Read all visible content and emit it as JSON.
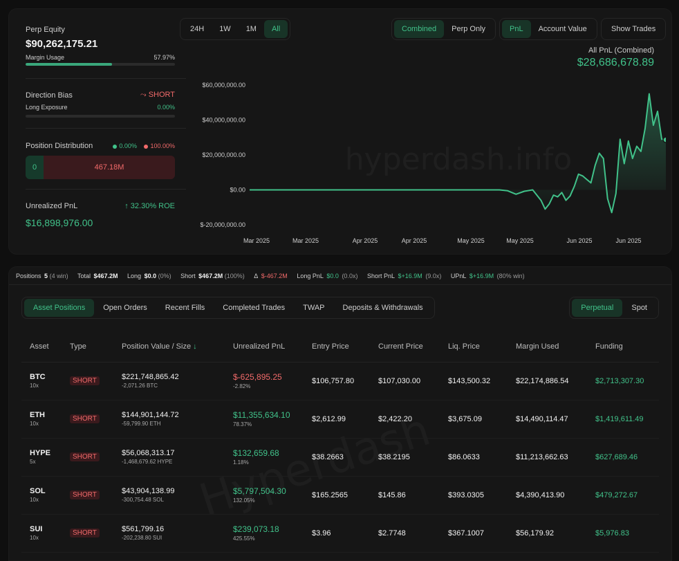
{
  "stats": {
    "equity_label": "Perp Equity",
    "equity_value": "$90,262,175.21",
    "margin_label": "Margin Usage",
    "margin_value": "57.97%",
    "margin_fraction": 0.5797,
    "bias_label": "Direction Bias",
    "bias_value": "SHORT",
    "long_exposure_label": "Long Exposure",
    "long_exposure_value": "0.00%",
    "long_exposure_fraction": 0,
    "dist_label": "Position Distribution",
    "dist_long_pct": "0.00%",
    "dist_short_pct": "100.00%",
    "dist_long_value": "0",
    "dist_short_value": "467.18M",
    "upnl_label": "Unrealized PnL",
    "upnl_roe": "32.30% ROE",
    "upnl_value": "$16,898,976.00"
  },
  "timeframes": [
    "24H",
    "1W",
    "1M",
    "All"
  ],
  "modes": [
    "Combined",
    "Perp Only"
  ],
  "metrics": [
    "PnL",
    "Account Value"
  ],
  "show_trades": "Show Trades",
  "pnl_title": "All PnL (Combined)",
  "pnl_value": "$28,686,678.89",
  "watermark": "hyperdash.info",
  "watermark2": "Hyperdash",
  "chart_data": {
    "type": "area",
    "ylim": [
      -20000000,
      60000000
    ],
    "yticks": [
      "$60,000,000.00",
      "$40,000,000.00",
      "$20,000,000.00",
      "$0.00",
      "$-20,000,000.00"
    ],
    "xticks": [
      "Mar 2025",
      "Mar 2025",
      "Apr 2025",
      "Apr 2025",
      "May 2025",
      "May 2025",
      "Jun 2025",
      "Jun 2025"
    ],
    "x": [
      0,
      5,
      10,
      15,
      20,
      25,
      30,
      35,
      40,
      45,
      50,
      55,
      60,
      62,
      64,
      66,
      68,
      70,
      71,
      72,
      73,
      74,
      75,
      76,
      77,
      78,
      79,
      80,
      81,
      82,
      83,
      84,
      85,
      86,
      87,
      88,
      89,
      90,
      91,
      92,
      93,
      94,
      95,
      96,
      97,
      98,
      99,
      100
    ],
    "values": [
      0,
      0,
      0,
      0,
      0,
      0,
      0,
      0,
      0,
      0,
      0,
      0,
      0,
      -500000,
      -2500000,
      -800000,
      0,
      -6000000,
      -11000000,
      -8000000,
      -3000000,
      -4000000,
      -1500000,
      -6000000,
      -3500000,
      2000000,
      9000000,
      8000000,
      6000000,
      4000000,
      14000000,
      21000000,
      18000000,
      -5000000,
      -13000000,
      -2000000,
      29000000,
      15000000,
      28000000,
      18000000,
      25000000,
      22000000,
      35000000,
      55000000,
      37000000,
      45000000,
      29000000,
      28686678
    ]
  },
  "summary": {
    "positions_label": "Positions",
    "positions_count": "5",
    "positions_win": "(4 win)",
    "total_label": "Total",
    "total_value": "$467.2M",
    "long_label": "Long",
    "long_value": "$0.0",
    "long_pct": "(0%)",
    "short_label": "Short",
    "short_value": "$467.2M",
    "short_pct": "(100%)",
    "delta_label": "Δ",
    "delta_value": "$-467.2M",
    "long_pnl_label": "Long PnL",
    "long_pnl_value": "$0.0",
    "long_pnl_x": "(0.0x)",
    "short_pnl_label": "Short PnL",
    "short_pnl_value": "$+16.9M",
    "short_pnl_x": "(9.0x)",
    "upnl_label": "UPnL",
    "upnl_value": "$+16.9M",
    "upnl_win": "(80% win)"
  },
  "tabs": [
    "Asset Positions",
    "Open Orders",
    "Recent Fills",
    "Completed Trades",
    "TWAP",
    "Deposits & Withdrawals"
  ],
  "type_tabs": [
    "Perpetual",
    "Spot"
  ],
  "columns": [
    "Asset",
    "Type",
    "Position Value / Size",
    "Unrealized PnL",
    "Entry Price",
    "Current Price",
    "Liq. Price",
    "Margin Used",
    "Funding"
  ],
  "sort_icon": "arrow-down-icon",
  "rows": [
    {
      "asset": "BTC",
      "lev": "10x",
      "type": "SHORT",
      "value": "$221,748,865.42",
      "size": "-2,071.26 BTC",
      "pnl": "$-625,895.25",
      "pnl_pct": "-2.82%",
      "pnl_pos": false,
      "entry": "$106,757.80",
      "current": "$107,030.00",
      "liq": "$143,500.32",
      "margin": "$22,174,886.54",
      "funding": "$2,713,307.30"
    },
    {
      "asset": "ETH",
      "lev": "10x",
      "type": "SHORT",
      "value": "$144,901,144.72",
      "size": "-59,799.90 ETH",
      "pnl": "$11,355,634.10",
      "pnl_pct": "78.37%",
      "pnl_pos": true,
      "entry": "$2,612.99",
      "current": "$2,422.20",
      "liq": "$3,675.09",
      "margin": "$14,490,114.47",
      "funding": "$1,419,611.49"
    },
    {
      "asset": "HYPE",
      "lev": "5x",
      "type": "SHORT",
      "value": "$56,068,313.17",
      "size": "-1,468,679.62 HYPE",
      "pnl": "$132,659.68",
      "pnl_pct": "1.18%",
      "pnl_pos": true,
      "entry": "$38.2663",
      "current": "$38.2195",
      "liq": "$86.0633",
      "margin": "$11,213,662.63",
      "funding": "$627,689.46"
    },
    {
      "asset": "SOL",
      "lev": "10x",
      "type": "SHORT",
      "value": "$43,904,138.99",
      "size": "-300,754.48 SOL",
      "pnl": "$5,797,504.30",
      "pnl_pct": "132.05%",
      "pnl_pos": true,
      "entry": "$165.2565",
      "current": "$145.86",
      "liq": "$393.0305",
      "margin": "$4,390,413.90",
      "funding": "$479,272.67"
    },
    {
      "asset": "SUI",
      "lev": "10x",
      "type": "SHORT",
      "value": "$561,799.16",
      "size": "-202,238.80 SUI",
      "pnl": "$239,073.18",
      "pnl_pct": "425.55%",
      "pnl_pos": true,
      "entry": "$3.96",
      "current": "$2.7748",
      "liq": "$367.1007",
      "margin": "$56,179.92",
      "funding": "$5,976.83"
    }
  ]
}
